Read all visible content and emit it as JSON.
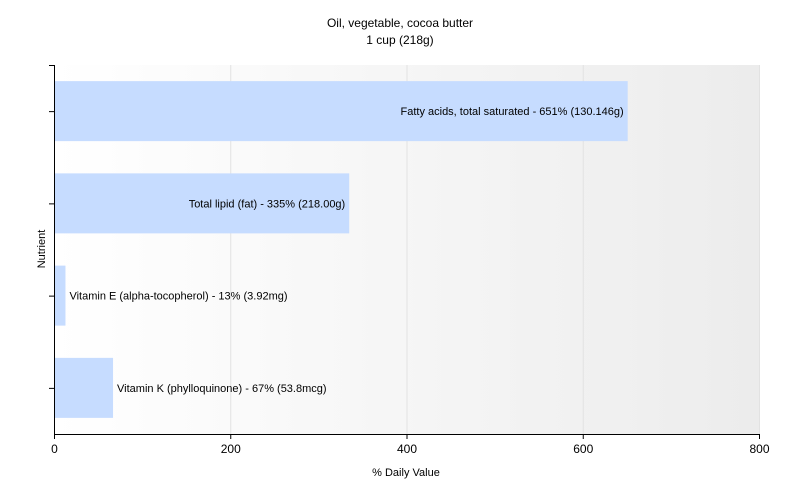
{
  "chart_data": {
    "type": "bar",
    "orientation": "horizontal",
    "title": "Oil, vegetable, cocoa butter",
    "subtitle": "1 cup (218g)",
    "xlabel": "% Daily Value",
    "ylabel": "Nutrient",
    "xlim": [
      0,
      800
    ],
    "xticks": [
      0,
      200,
      400,
      600,
      800
    ],
    "grid": true,
    "bar_color": "#c6dcff",
    "bars": [
      {
        "label": "Fatty acids, total saturated - 651% (130.146g)",
        "value": 651
      },
      {
        "label": "Total lipid (fat) - 335% (218.00g)",
        "value": 335
      },
      {
        "label": "Vitamin E (alpha-tocopherol) - 13% (3.92mg)",
        "value": 13
      },
      {
        "label": "Vitamin K (phylloquinone) - 67% (53.8mcg)",
        "value": 67
      }
    ]
  }
}
